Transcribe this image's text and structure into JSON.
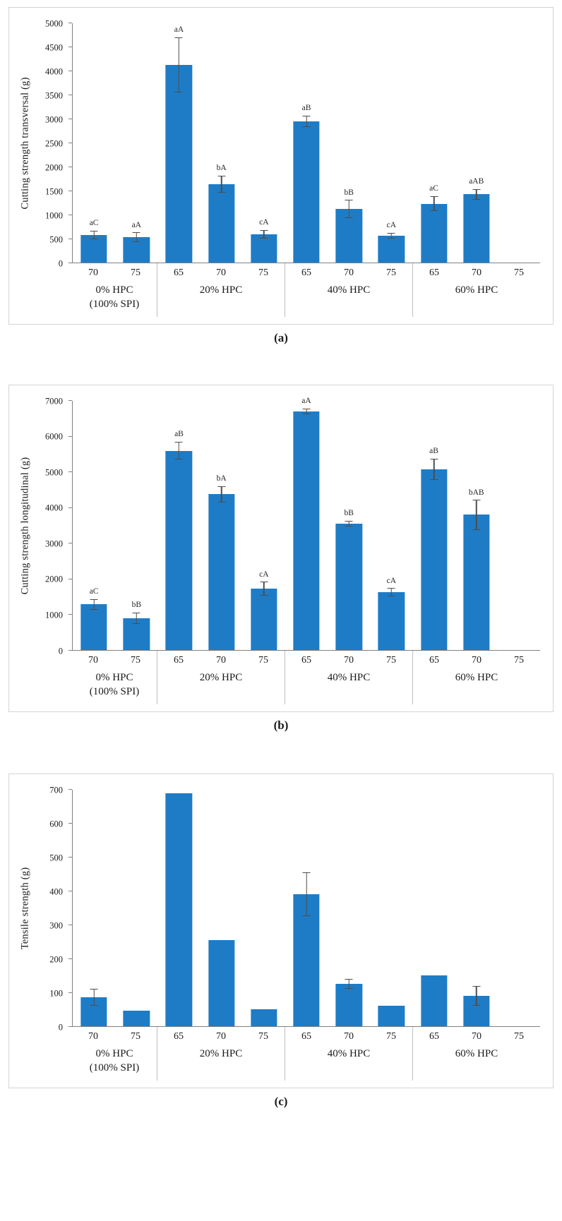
{
  "accent_color": "#1e7cc6",
  "error_bar_color": "#4d4d4d",
  "axis_color": "#808080",
  "chart_data": [
    {
      "type": "bar",
      "caption": "(a)",
      "title": "",
      "xlabel": "",
      "ylabel": "Cutting strength transversal (g)",
      "ylim": [
        0,
        5000
      ],
      "ytick_step": 500,
      "yticks": [
        0,
        500,
        1000,
        1500,
        2000,
        2500,
        3000,
        3500,
        4000,
        4500,
        5000
      ],
      "grid": false,
      "legend": "none",
      "groups": [
        {
          "label": "0% HPC\n(100% SPI)",
          "bars": [
            {
              "category": "70",
              "value": 580,
              "err": 90,
              "sig": "aC"
            },
            {
              "category": "75",
              "value": 530,
              "err": 100,
              "sig": "aA"
            }
          ]
        },
        {
          "label": "20% HPC",
          "bars": [
            {
              "category": "65",
              "value": 4130,
              "err": 580,
              "sig": "aA"
            },
            {
              "category": "70",
              "value": 1640,
              "err": 180,
              "sig": "bA"
            },
            {
              "category": "75",
              "value": 590,
              "err": 90,
              "sig": "cA"
            }
          ]
        },
        {
          "label": "40% HPC",
          "bars": [
            {
              "category": "65",
              "value": 2950,
              "err": 120,
              "sig": "aB"
            },
            {
              "category": "70",
              "value": 1120,
              "err": 190,
              "sig": "bB"
            },
            {
              "category": "75",
              "value": 560,
              "err": 60,
              "sig": "cA"
            }
          ]
        },
        {
          "label": "60% HPC",
          "bars": [
            {
              "category": "65",
              "value": 1230,
              "err": 160,
              "sig": "aC"
            },
            {
              "category": "70",
              "value": 1430,
              "err": 110,
              "sig": "aAB"
            },
            {
              "category": "75",
              "value": null,
              "err": null,
              "sig": ""
            }
          ]
        }
      ]
    },
    {
      "type": "bar",
      "caption": "(b)",
      "title": "",
      "xlabel": "",
      "ylabel": "Cutting strength longitudinal (g)",
      "ylim": [
        0,
        7000
      ],
      "ytick_step": 1000,
      "yticks": [
        0,
        1000,
        2000,
        3000,
        4000,
        5000,
        6000,
        7000
      ],
      "grid": false,
      "legend": "none",
      "groups": [
        {
          "label": "0% HPC\n(100% SPI)",
          "bars": [
            {
              "category": "70",
              "value": 1280,
              "err": 150,
              "sig": "aC"
            },
            {
              "category": "75",
              "value": 900,
              "err": 160,
              "sig": "bB"
            }
          ]
        },
        {
          "label": "20% HPC",
          "bars": [
            {
              "category": "65",
              "value": 5600,
              "err": 250,
              "sig": "aB"
            },
            {
              "category": "70",
              "value": 4380,
              "err": 230,
              "sig": "bA"
            },
            {
              "category": "75",
              "value": 1720,
              "err": 200,
              "sig": "cA"
            }
          ]
        },
        {
          "label": "40% HPC",
          "bars": [
            {
              "category": "65",
              "value": 6700,
              "err": 80,
              "sig": "aA"
            },
            {
              "category": "70",
              "value": 3550,
              "err": 80,
              "sig": "bB"
            },
            {
              "category": "75",
              "value": 1620,
              "err": 120,
              "sig": "cA"
            }
          ]
        },
        {
          "label": "60% HPC",
          "bars": [
            {
              "category": "65",
              "value": 5080,
              "err": 300,
              "sig": "aB"
            },
            {
              "category": "70",
              "value": 3800,
              "err": 420,
              "sig": "bAB"
            },
            {
              "category": "75",
              "value": null,
              "err": null,
              "sig": ""
            }
          ]
        }
      ]
    },
    {
      "type": "bar",
      "caption": "(c)",
      "title": "",
      "xlabel": "",
      "ylabel": "Tensile strength (g)",
      "ylim": [
        0,
        700
      ],
      "ytick_step": 100,
      "yticks": [
        0,
        100,
        200,
        300,
        400,
        500,
        600,
        700
      ],
      "grid": false,
      "legend": "none",
      "groups": [
        {
          "label": "0% HPC\n(100% SPI)",
          "bars": [
            {
              "category": "70",
              "value": 85,
              "err": 25,
              "sig": ""
            },
            {
              "category": "75",
              "value": 45,
              "err": null,
              "sig": ""
            }
          ]
        },
        {
          "label": "20% HPC",
          "bars": [
            {
              "category": "65",
              "value": 690,
              "err": null,
              "sig": ""
            },
            {
              "category": "70",
              "value": 255,
              "err": null,
              "sig": ""
            },
            {
              "category": "75",
              "value": 50,
              "err": null,
              "sig": ""
            }
          ]
        },
        {
          "label": "40% HPC",
          "bars": [
            {
              "category": "65",
              "value": 390,
              "err": 65,
              "sig": ""
            },
            {
              "category": "70",
              "value": 125,
              "err": 15,
              "sig": ""
            },
            {
              "category": "75",
              "value": 60,
              "err": null,
              "sig": ""
            }
          ]
        },
        {
          "label": "60% HPC",
          "bars": [
            {
              "category": "65",
              "value": 150,
              "err": null,
              "sig": ""
            },
            {
              "category": "70",
              "value": 90,
              "err": 30,
              "sig": ""
            },
            {
              "category": "75",
              "value": null,
              "err": null,
              "sig": ""
            }
          ]
        }
      ]
    }
  ]
}
